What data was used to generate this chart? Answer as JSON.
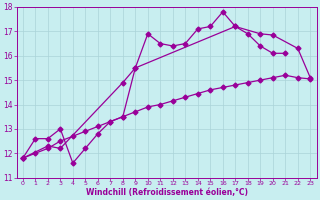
{
  "xlabel": "Windchill (Refroidissement éolien,°C)",
  "bg_color": "#c8eef0",
  "grid_color": "#aad4d8",
  "line_color": "#990099",
  "markersize": 2.5,
  "linewidth": 0.9,
  "xlim": [
    -0.5,
    23.5
  ],
  "ylim": [
    11,
    18
  ],
  "yticks": [
    11,
    12,
    13,
    14,
    15,
    16,
    17,
    18
  ],
  "xticks": [
    0,
    1,
    2,
    3,
    4,
    5,
    6,
    7,
    8,
    9,
    10,
    11,
    12,
    13,
    14,
    15,
    16,
    17,
    18,
    19,
    20,
    21,
    22,
    23
  ],
  "line1_x": [
    0,
    1,
    2,
    3,
    4,
    5,
    6,
    7,
    8,
    9,
    10,
    11,
    12,
    13,
    14,
    15,
    16,
    17,
    18,
    19,
    20,
    21
  ],
  "line1_y": [
    11.8,
    12.6,
    12.6,
    13.0,
    11.6,
    12.2,
    12.8,
    13.3,
    13.5,
    15.5,
    16.9,
    16.5,
    16.4,
    16.5,
    17.1,
    17.2,
    17.8,
    17.2,
    16.9,
    16.4,
    16.1,
    16.1
  ],
  "line2_x": [
    0,
    2,
    3,
    8,
    9,
    17,
    19,
    20,
    22,
    23
  ],
  "line2_y": [
    11.8,
    12.3,
    12.2,
    14.9,
    15.5,
    17.2,
    16.9,
    16.85,
    16.3,
    15.1
  ],
  "line3_x": [
    0,
    1,
    2,
    3,
    4,
    5,
    6,
    7,
    8,
    9,
    10,
    11,
    12,
    13,
    14,
    15,
    16,
    17,
    18,
    19,
    20,
    21,
    22,
    23
  ],
  "line3_y": [
    11.8,
    12.0,
    12.2,
    12.5,
    12.7,
    12.9,
    13.1,
    13.3,
    13.5,
    13.7,
    13.9,
    14.0,
    14.15,
    14.3,
    14.45,
    14.6,
    14.7,
    14.8,
    14.9,
    15.0,
    15.1,
    15.2,
    15.1,
    15.05
  ]
}
